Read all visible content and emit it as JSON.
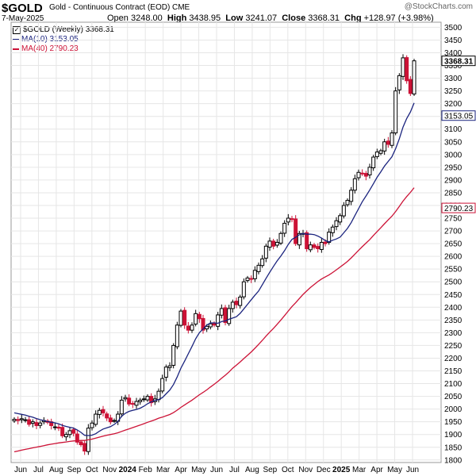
{
  "header": {
    "symbol": "$GOLD",
    "contract": "Gold - Continuous Contract (EOD)",
    "exchange": "CME",
    "date": "7-May-2025",
    "open_label": "Open",
    "open": "3248.00",
    "high_label": "High",
    "high": "3438.95",
    "low_label": "Low",
    "low": "3241.07",
    "close_label": "Close",
    "close": "3368.31",
    "chg_label": "Chg",
    "chg": "+128.97 (+3.98%)",
    "watermark": "@StockCharts.com"
  },
  "legend": {
    "price_label": "$GOLD (Weekly) 3368.31",
    "ma10_label": "MA(10) 3153.05",
    "ma40_label": "MA(40) 2790.23"
  },
  "colors": {
    "up": "#000000",
    "down": "#cc1236",
    "ma10": "#1a237e",
    "ma40": "#cc1236",
    "grid": "#e6e6e6"
  },
  "chart_data": {
    "type": "candlestick",
    "frequency": "weekly",
    "x_axis": {
      "tick_labels": [
        "Jun",
        "Jul",
        "Aug",
        "Sep",
        "Oct",
        "Nov",
        "2024",
        "Feb",
        "Mar",
        "Apr",
        "May",
        "Jun",
        "Jul",
        "Aug",
        "Sep",
        "Oct",
        "Nov",
        "Dec",
        "2025",
        "Mar",
        "Apr",
        "May",
        "Jun"
      ]
    },
    "y_axis": {
      "side": "right",
      "range": [
        1790,
        3520
      ],
      "tick_labels": [
        "1800",
        "1850",
        "1900",
        "1950",
        "2000",
        "2050",
        "2100",
        "2150",
        "2200",
        "2250",
        "2300",
        "2350",
        "2400",
        "2450",
        "2500",
        "2550",
        "2600",
        "2650",
        "2700",
        "2750",
        "2800",
        "2850",
        "2900",
        "2950",
        "3000",
        "3050",
        "3100",
        "3150",
        "3200",
        "3250",
        "3300",
        "3350",
        "3400",
        "3450",
        "3500"
      ]
    },
    "last_price": "3368.31",
    "ma10_value": "3153.05",
    "ma40_value": "2790.23",
    "grid": true,
    "series_close": [
      1960,
      1955,
      1962,
      1958,
      1940,
      1950,
      1935,
      1945,
      1955,
      1948,
      1935,
      1930,
      1925,
      1895,
      1900,
      1915,
      1905,
      1870,
      1860,
      1835,
      1925,
      1945,
      1980,
      1995,
      1985,
      1965,
      1950,
      1955,
      1980,
      2035,
      2045,
      2020,
      2020,
      2030,
      2035,
      2040,
      2050,
      2025,
      2040,
      2070,
      2120,
      2165,
      2170,
      2250,
      2330,
      2385,
      2330,
      2310,
      2330,
      2375,
      2355,
      2310,
      2325,
      2335,
      2330,
      2370,
      2395,
      2340,
      2395,
      2420,
      2410,
      2440,
      2500,
      2515,
      2510,
      2545,
      2565,
      2590,
      2640,
      2660,
      2640,
      2655,
      2690,
      2730,
      2750,
      2745,
      2650,
      2690,
      2690,
      2630,
      2645,
      2635,
      2630,
      2655,
      2650,
      2695,
      2715,
      2740,
      2760,
      2800,
      2820,
      2860,
      2905,
      2930,
      2925,
      2915,
      2950,
      2990,
      3010,
      3015,
      3050,
      3040,
      3085,
      3250,
      3310,
      3380,
      3290,
      3240,
      3368.31
    ],
    "series_ma10_start": 1985,
    "series_ma40_start": 1832
  }
}
